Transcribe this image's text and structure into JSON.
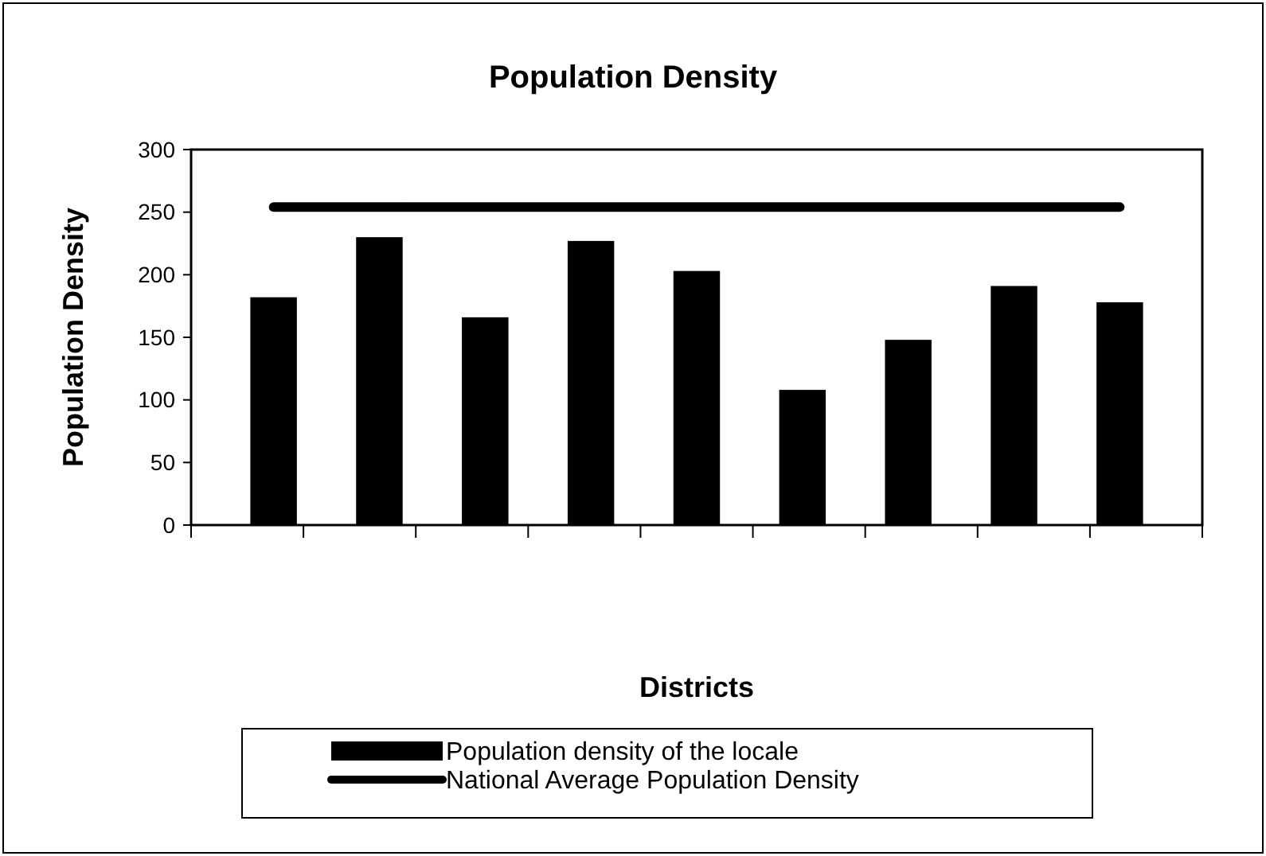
{
  "chart_data": {
    "type": "bar",
    "title": "Population Density",
    "xlabel": "Districts",
    "ylabel": "Population Density",
    "categories": [
      null,
      null,
      null,
      null,
      null,
      null,
      null,
      null,
      null
    ],
    "series": [
      {
        "name": "Population density of the locale",
        "color": "#000000",
        "values": [
          182,
          230,
          166,
          227,
          203,
          108,
          148,
          191,
          178
        ]
      }
    ],
    "ref_lines": [
      {
        "axis": "y",
        "value": 254,
        "label": "National Average Population Density",
        "color": "#000000",
        "line_style": "solid"
      }
    ],
    "ylim": [
      0,
      300
    ],
    "yticks": [
      0,
      50,
      100,
      150,
      200,
      250,
      300
    ],
    "grid": false,
    "legend": "bottom"
  }
}
